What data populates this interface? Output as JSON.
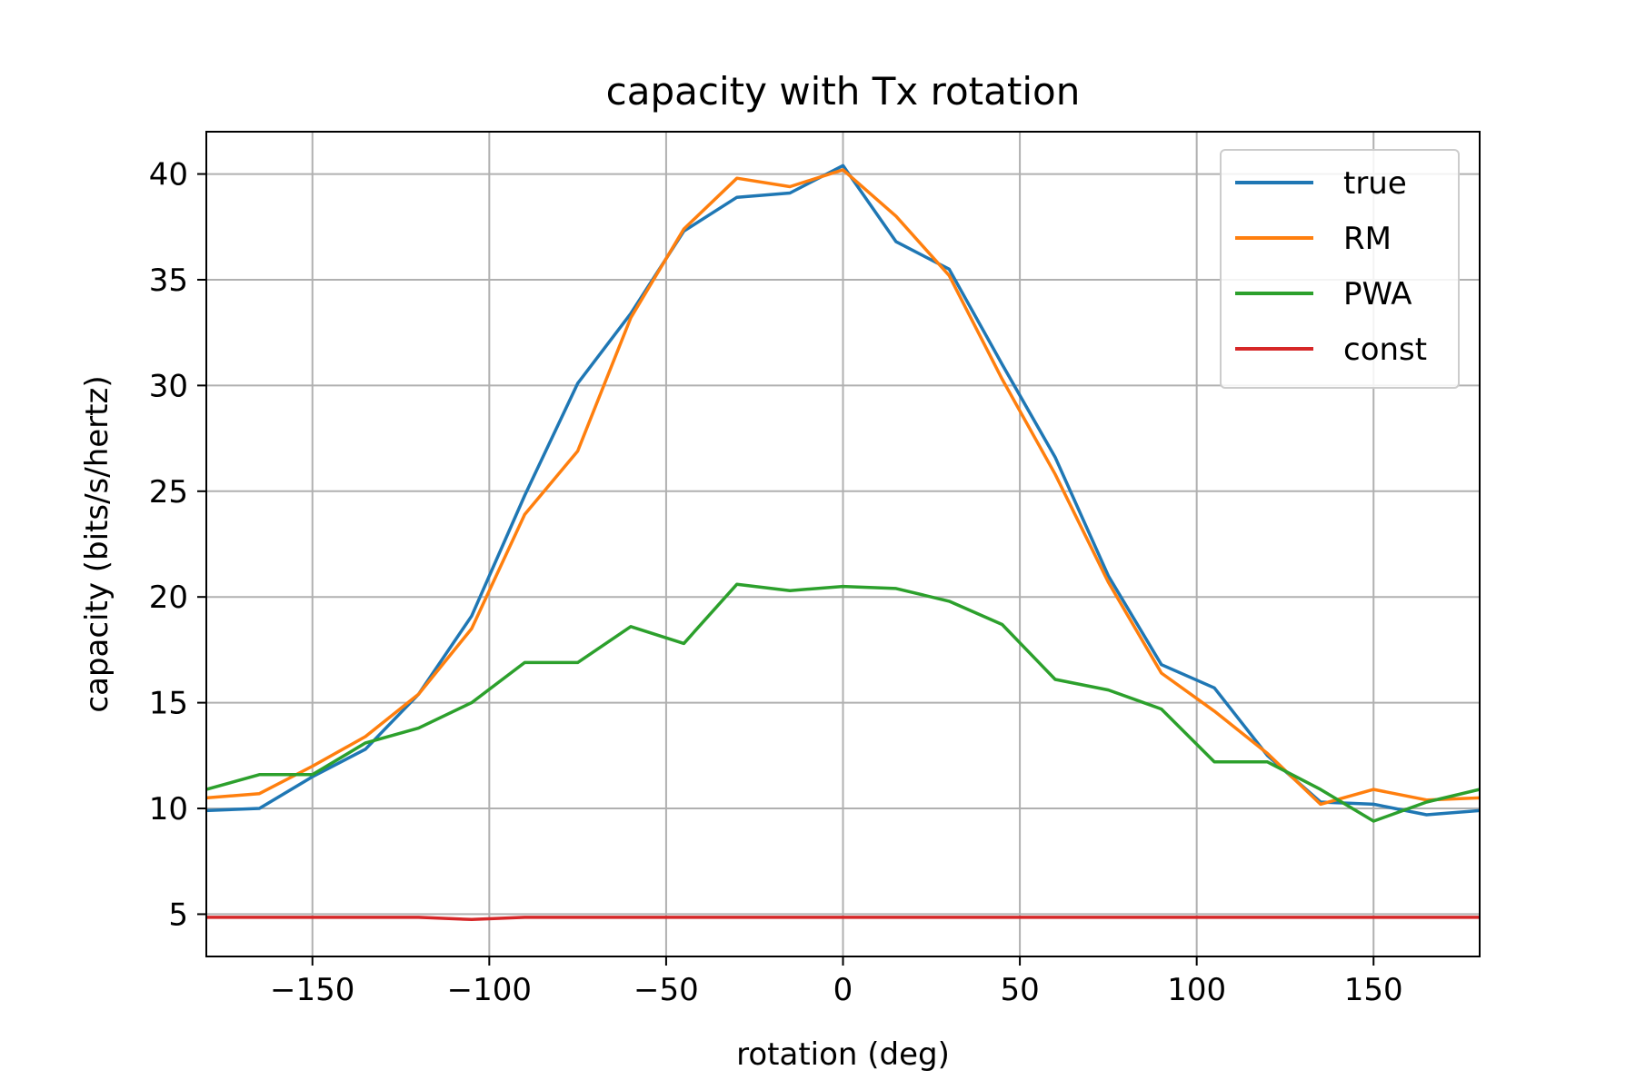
{
  "chart_data": {
    "type": "line",
    "title": "capacity with Tx rotation",
    "xlabel": "rotation (deg)",
    "ylabel": "capacity (bits/s/hertz)",
    "xlim": [
      -180,
      180
    ],
    "ylim": [
      3,
      42
    ],
    "xticks": [
      -150,
      -100,
      -50,
      0,
      50,
      100,
      150
    ],
    "xtick_labels": [
      "−150",
      "−100",
      "−50",
      "0",
      "50",
      "100",
      "150"
    ],
    "yticks": [
      5,
      10,
      15,
      20,
      25,
      30,
      35,
      40
    ],
    "ytick_labels": [
      "5",
      "10",
      "15",
      "20",
      "25",
      "30",
      "35",
      "40"
    ],
    "grid": true,
    "legend_position": "top-right",
    "x": [
      -180,
      -165,
      -150,
      -135,
      -120,
      -105,
      -90,
      -75,
      -60,
      -45,
      -30,
      -15,
      0,
      15,
      30,
      45,
      60,
      75,
      90,
      105,
      120,
      135,
      150,
      165,
      180
    ],
    "series": [
      {
        "name": "true",
        "color": "#1f77b4",
        "values": [
          9.9,
          10.0,
          11.5,
          12.8,
          15.4,
          19.1,
          24.8,
          30.1,
          33.4,
          37.3,
          38.9,
          39.1,
          40.4,
          36.8,
          35.5,
          31.0,
          26.6,
          21.0,
          16.8,
          15.7,
          12.5,
          10.3,
          10.2,
          9.7,
          9.9
        ]
      },
      {
        "name": "RM",
        "color": "#ff7f0e",
        "values": [
          10.5,
          10.7,
          12.0,
          13.4,
          15.4,
          18.5,
          23.9,
          26.9,
          33.2,
          37.4,
          39.8,
          39.4,
          40.2,
          38.0,
          35.2,
          30.3,
          25.8,
          20.7,
          16.4,
          14.6,
          12.6,
          10.2,
          10.9,
          10.4,
          10.5
        ]
      },
      {
        "name": "PWA",
        "color": "#2ca02c",
        "values": [
          10.9,
          11.6,
          11.6,
          13.1,
          13.8,
          15.0,
          16.9,
          16.9,
          18.6,
          17.8,
          20.6,
          20.3,
          20.5,
          20.4,
          19.8,
          18.7,
          16.1,
          15.6,
          14.7,
          12.2,
          12.2,
          10.9,
          9.4,
          10.3,
          10.9
        ]
      },
      {
        "name": "const",
        "color": "#d62728",
        "values": [
          4.85,
          4.85,
          4.85,
          4.85,
          4.85,
          4.75,
          4.85,
          4.85,
          4.85,
          4.85,
          4.85,
          4.85,
          4.85,
          4.85,
          4.85,
          4.85,
          4.85,
          4.85,
          4.85,
          4.85,
          4.85,
          4.85,
          4.85,
          4.85,
          4.85
        ]
      }
    ]
  }
}
